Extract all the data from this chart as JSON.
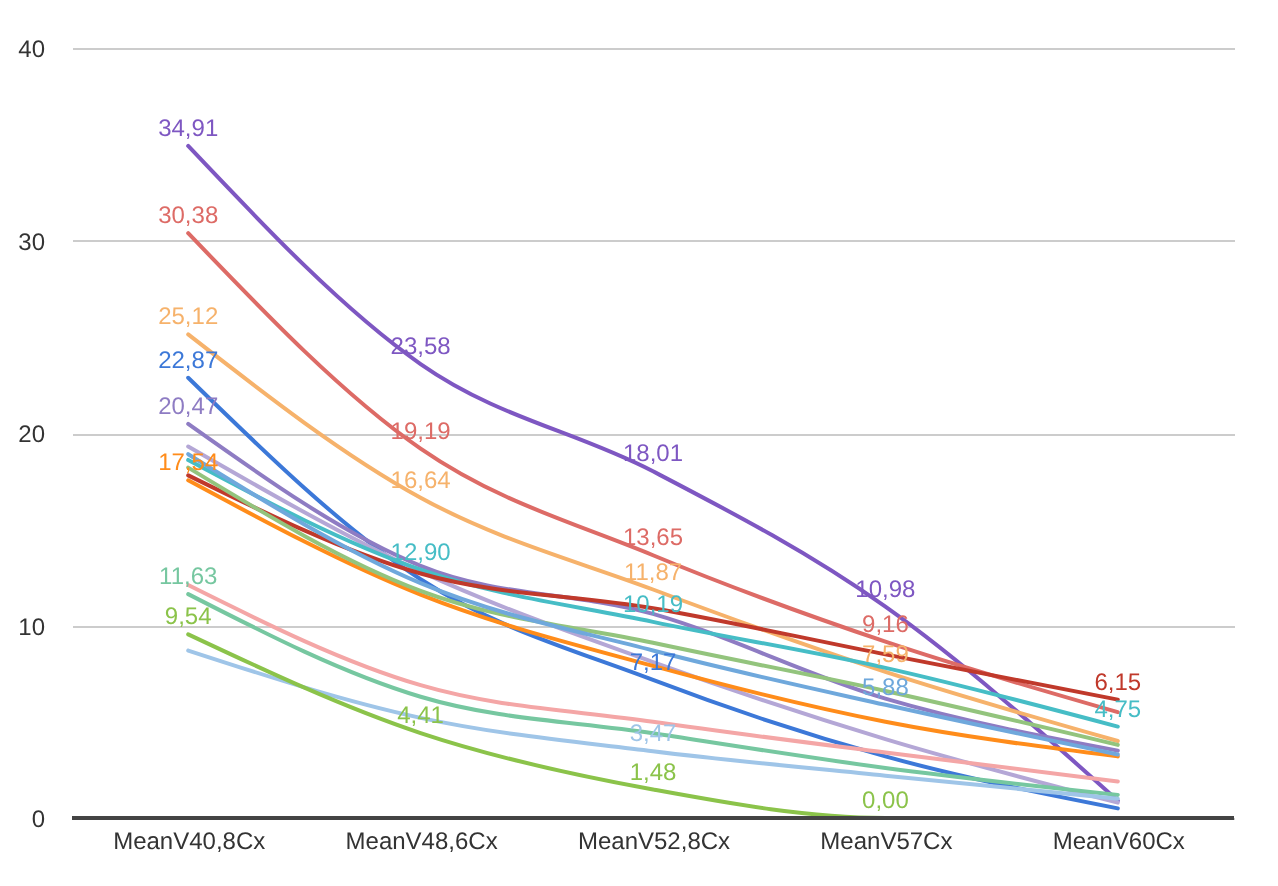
{
  "chart_data": {
    "type": "line",
    "categories": [
      "MeanV40,8Cx",
      "MeanV48,6Cx",
      "MeanV52,8Cx",
      "MeanV57Cx",
      "MeanV60Cx"
    ],
    "series": [
      {
        "color": "#7e57c2",
        "values": [
          34.91,
          23.58,
          18.01,
          10.98,
          0.9
        ],
        "value_labels": [
          "34,91",
          "23,58",
          "18,01",
          "10,98",
          null
        ]
      },
      {
        "color": "#dd6b66",
        "values": [
          30.38,
          19.19,
          13.65,
          9.16,
          5.5
        ],
        "value_labels": [
          "30,38",
          "19,19",
          "13,65",
          "9,16",
          null
        ]
      },
      {
        "color": "#f6b26b",
        "values": [
          25.12,
          16.64,
          11.87,
          7.59,
          4.0
        ],
        "value_labels": [
          "25,12",
          "16,64",
          "11,87",
          "7,59",
          null
        ]
      },
      {
        "color": "#3c78d8",
        "values": [
          22.87,
          12.4,
          7.17,
          3.2,
          0.5
        ],
        "value_labels": [
          "22,87",
          null,
          "7,17",
          null,
          null
        ]
      },
      {
        "color": "#8e7cc3",
        "values": [
          20.47,
          13.1,
          10.6,
          6.2,
          3.5
        ],
        "value_labels": [
          "20,47",
          null,
          null,
          null,
          null
        ]
      },
      {
        "color": "#b4a7d6",
        "values": [
          19.3,
          12.8,
          8.1,
          4.1,
          0.8
        ]
      },
      {
        "color": "#46bdc6",
        "values": [
          18.6,
          12.9,
          10.19,
          7.8,
          4.75
        ],
        "value_labels": [
          null,
          "12,90",
          "10,19",
          null,
          "4,75"
        ]
      },
      {
        "color": "#ff8c1a",
        "values": [
          17.54,
          11.6,
          7.9,
          5.0,
          3.2
        ],
        "value_labels": [
          "17,54",
          null,
          null,
          null,
          null
        ]
      },
      {
        "color": "#c0392b",
        "values": [
          17.8,
          12.7,
          10.9,
          8.5,
          6.15
        ],
        "value_labels": [
          null,
          null,
          null,
          null,
          "6,15"
        ]
      },
      {
        "color": "#93c47d",
        "values": [
          18.2,
          11.8,
          9.1,
          6.6,
          3.8
        ]
      },
      {
        "color": "#6fa8dc",
        "values": [
          18.9,
          12.2,
          8.7,
          5.88,
          3.3
        ],
        "value_labels": [
          null,
          null,
          null,
          "5,88",
          null
        ]
      },
      {
        "color": "#f4a6a6",
        "values": [
          12.1,
          6.9,
          5.0,
          3.4,
          1.9
        ]
      },
      {
        "color": "#76c7a0",
        "values": [
          11.63,
          6.3,
          4.4,
          2.6,
          1.2
        ],
        "value_labels": [
          "11,63",
          null,
          null,
          null,
          null
        ]
      },
      {
        "color": "#9fc5e8",
        "values": [
          8.7,
          5.2,
          3.47,
          2.2,
          1.0
        ],
        "value_labels": [
          null,
          null,
          "3,47",
          null,
          null
        ]
      },
      {
        "color": "#8bc34a",
        "values": [
          9.54,
          4.41,
          1.48,
          0.0,
          0.0
        ],
        "value_labels": [
          "9,54",
          "4,41",
          "1,48",
          "0,00",
          null
        ]
      }
    ],
    "ylim": [
      0,
      40
    ],
    "yticks": [
      0,
      10,
      20,
      30,
      40
    ],
    "grid": "y",
    "legend": false,
    "marker": "none",
    "line_style": "solid"
  }
}
